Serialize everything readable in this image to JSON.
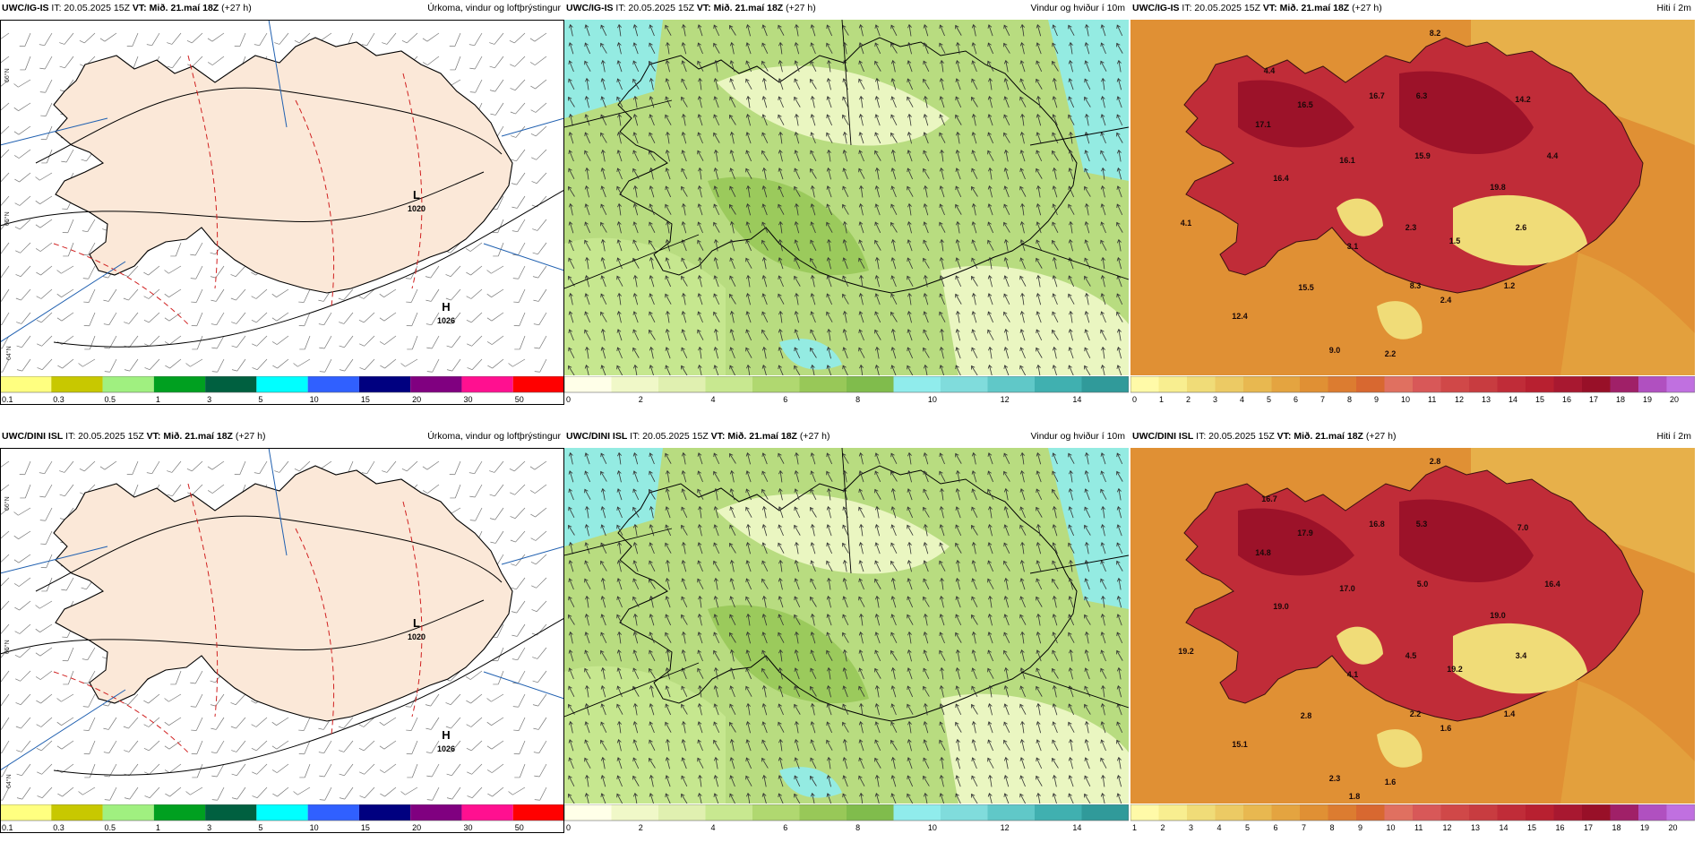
{
  "rows": [
    {
      "model": "UWC/IG-IS",
      "panels": [
        {
          "title": "Úrkoma, vindur og loftþrýstingur",
          "colorbar": "precip",
          "type": "precip",
          "pressure_labels": [
            {
              "kind": "L",
              "value": "1020",
              "loc": "east"
            },
            {
              "kind": "H",
              "value": "1026",
              "loc": "southeast"
            }
          ]
        },
        {
          "title": "Vindur og hviður í 10m",
          "colorbar": "wind",
          "type": "wind"
        },
        {
          "title": "Hiti í 2m",
          "colorbar": "temp_a",
          "type": "temp",
          "labels": [
            "8.2",
            "4.4",
            "16.5",
            "16.7",
            "6.3",
            "14.2",
            "17.1",
            "16.1",
            "15.9",
            "4.4",
            "16.4",
            "19.8",
            "4.1",
            "2.3",
            "1.5",
            "2.6",
            "3.1",
            "15.5",
            "8.3",
            "2.4",
            "1.2",
            "12.4",
            "9.0",
            "2.2"
          ]
        }
      ]
    },
    {
      "model": "UWC/DINI ISL",
      "panels": [
        {
          "title": "Úrkoma, vindur og loftþrýstingur",
          "colorbar": "precip",
          "type": "precip",
          "pressure_labels": [
            {
              "kind": "L",
              "value": "1020",
              "loc": "east"
            },
            {
              "kind": "H",
              "value": "1026",
              "loc": "southeast"
            }
          ]
        },
        {
          "title": "Vindur og hviður í 10m",
          "colorbar": "wind",
          "type": "wind"
        },
        {
          "title": "Hiti í 2m",
          "colorbar": "temp_b",
          "type": "temp",
          "labels": [
            "2.8",
            "16.7",
            "17.9",
            "16.8",
            "5.3",
            "7.0",
            "14.8",
            "17.0",
            "5.0",
            "16.4",
            "19.0",
            "19.0",
            "19.2",
            "4.5",
            "19.2",
            "3.4",
            "4.1",
            "2.8",
            "2.2",
            "1.6",
            "1.4",
            "15.1",
            "2.3",
            "1.6",
            "1.8"
          ]
        }
      ]
    }
  ],
  "issue": "IT: 20.05.2025 15Z",
  "valid_prefix": "VT:",
  "valid": "Mið. 21.maí 18Z",
  "lead": "(+27 h)",
  "colorbars": {
    "precip": {
      "colors": [
        "#ffff80",
        "#c8c800",
        "#a0f080",
        "#00a020",
        "#006040",
        "#00ffff",
        "#3060ff",
        "#000080",
        "#800080",
        "#ff1090",
        "#ff0000"
      ],
      "ticks": [
        "0.1",
        "0.3",
        "0.5",
        "1",
        "3",
        "5",
        "10",
        "15",
        "20",
        "30",
        "50"
      ]
    },
    "wind": {
      "colors": [
        "#ffffe8",
        "#f0f8c8",
        "#e0f0b0",
        "#c8e890",
        "#b0d870",
        "#98c858",
        "#80bc4c",
        "#90ecec",
        "#80dcdc",
        "#60c8c8",
        "#40b0b0",
        "#309a9a"
      ],
      "ticks": [
        "0",
        "2",
        "4",
        "6",
        "8",
        "10",
        "12",
        "14"
      ]
    },
    "temp_a": {
      "colors": [
        "#fffaa8",
        "#f8ee90",
        "#f0dc78",
        "#ecca64",
        "#e8b850",
        "#e4a440",
        "#e09034",
        "#dc7c30",
        "#d86830",
        "#e07060",
        "#d85858",
        "#d04848",
        "#c83c40",
        "#c02c38",
        "#b82030",
        "#a81830",
        "#981028",
        "#a02068",
        "#b050c0",
        "#c070e0"
      ],
      "ticks": [
        "0",
        "1",
        "2",
        "3",
        "4",
        "5",
        "6",
        "7",
        "8",
        "9",
        "10",
        "11",
        "12",
        "13",
        "14",
        "15",
        "16",
        "17",
        "18",
        "19",
        "20"
      ]
    },
    "temp_b": {
      "colors": [
        "#fffaa8",
        "#f8ee90",
        "#f0dc78",
        "#ecca64",
        "#e8b850",
        "#e4a440",
        "#e09034",
        "#dc7c30",
        "#d86830",
        "#e07060",
        "#d85858",
        "#d04848",
        "#c83c40",
        "#c02c38",
        "#b82030",
        "#a81830",
        "#981028",
        "#a02068",
        "#b050c0",
        "#c070e0"
      ],
      "ticks": [
        "1",
        "2",
        "3",
        "4",
        "5",
        "6",
        "7",
        "8",
        "9",
        "10",
        "11",
        "12",
        "13",
        "14",
        "15",
        "16",
        "17",
        "18",
        "19",
        "20"
      ]
    }
  },
  "lat_labels": [
    "66°N",
    "65°N",
    "64°N"
  ]
}
